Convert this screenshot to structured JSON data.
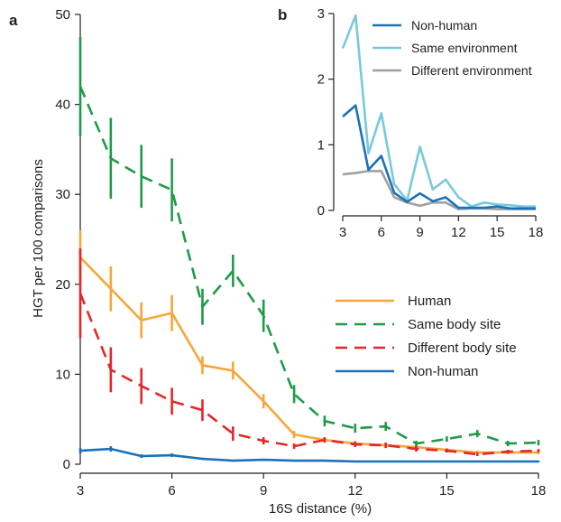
{
  "chart_data": [
    {
      "panel_label": "a",
      "type": "line",
      "xlabel": "16S distance (%)",
      "ylabel": "HGT per 100 comparisons",
      "xlim": [
        3,
        18
      ],
      "ylim": [
        0,
        50
      ],
      "xticks": [
        "3",
        "6",
        "9",
        "12",
        "15",
        "18"
      ],
      "yticks": [
        "0",
        "10",
        "20",
        "30",
        "40",
        "50"
      ],
      "legend_position": "center-right",
      "x": [
        3,
        4,
        5,
        6,
        7,
        8,
        9,
        10,
        11,
        12,
        13,
        14,
        15,
        16,
        17,
        18
      ],
      "series": [
        {
          "name": "Human",
          "color": "#f7a739",
          "dashed": false,
          "values": [
            23,
            19.5,
            16,
            16.8,
            11,
            10.4,
            7,
            3.3,
            2.7,
            2.3,
            2.1,
            1.9,
            1.6,
            1.3,
            1.3,
            1.3
          ],
          "errors": [
            3,
            2.5,
            2,
            2,
            1,
            1,
            0.8,
            0.4,
            0.3,
            0.3,
            0.3,
            0.3,
            0.2,
            0.2,
            0.2,
            0.2
          ]
        },
        {
          "name": "Same body site",
          "color": "#1f9a48",
          "dashed": true,
          "values": [
            42,
            34,
            32,
            30.5,
            17.5,
            21.5,
            16.5,
            7.8,
            4.8,
            4,
            4.2,
            2.3,
            2.8,
            3.4,
            2.3,
            2.4
          ],
          "errors": [
            5.5,
            4.5,
            3.5,
            3.5,
            2,
            1.8,
            1.8,
            1,
            0.6,
            0.5,
            0.5,
            0.3,
            0.3,
            0.4,
            0.3,
            0.3
          ]
        },
        {
          "name": "Different body site",
          "color": "#e3272b",
          "dashed": true,
          "values": [
            19,
            10.5,
            8.7,
            7,
            6,
            3.4,
            2.6,
            2,
            2.7,
            2.2,
            2.1,
            1.7,
            1.5,
            1.1,
            1.4,
            1.5
          ],
          "errors": [
            5,
            2.5,
            2,
            1.5,
            1.2,
            0.8,
            0.4,
            0.3,
            0.3,
            0.3,
            0.3,
            0.3,
            0.2,
            0.2,
            0.2,
            0.2
          ]
        },
        {
          "name": "Non-human",
          "color": "#1d71b8",
          "dashed": false,
          "values": [
            1.5,
            1.7,
            0.9,
            1.0,
            0.6,
            0.4,
            0.5,
            0.4,
            0.4,
            0.3,
            0.3,
            0.3,
            0.3,
            0.3,
            0.3,
            0.3
          ],
          "errors": [
            0.3,
            0.3,
            0.2,
            0.2,
            0.1,
            0.1,
            0.1,
            0.1,
            0.1,
            0.1,
            0.1,
            0.1,
            0.1,
            0.1,
            0.1,
            0.1
          ]
        }
      ]
    },
    {
      "panel_label": "b",
      "type": "line",
      "xlim": [
        3,
        18
      ],
      "ylim": [
        0,
        3
      ],
      "xticks": [
        "3",
        "6",
        "9",
        "12",
        "15",
        "18"
      ],
      "yticks": [
        "0",
        "1",
        "2",
        "3"
      ],
      "legend_position": "top-right",
      "x": [
        3,
        4,
        5,
        6,
        7,
        8,
        9,
        10,
        11,
        12,
        13,
        14,
        15,
        16,
        17,
        18
      ],
      "series": [
        {
          "name": "Non-human",
          "color": "#1d71b8",
          "values": [
            1.43,
            1.6,
            0.62,
            0.83,
            0.27,
            0.13,
            0.26,
            0.14,
            0.2,
            0.04,
            0.04,
            0.04,
            0.06,
            0.03,
            0.03,
            0.03
          ]
        },
        {
          "name": "Same environment",
          "color": "#79c9dd",
          "values": [
            2.47,
            2.97,
            0.87,
            1.48,
            0.4,
            0.15,
            0.97,
            0.32,
            0.47,
            0.2,
            0.06,
            0.12,
            0.09,
            0.08,
            0.06,
            0.06
          ]
        },
        {
          "name": "Different environment",
          "color": "#a0a0a0",
          "values": [
            0.55,
            0.57,
            0.6,
            0.6,
            0.2,
            0.12,
            0.07,
            0.12,
            0.12,
            0.02,
            0.03,
            0.03,
            0.02,
            0.02,
            0.02,
            0.02
          ]
        }
      ]
    }
  ]
}
